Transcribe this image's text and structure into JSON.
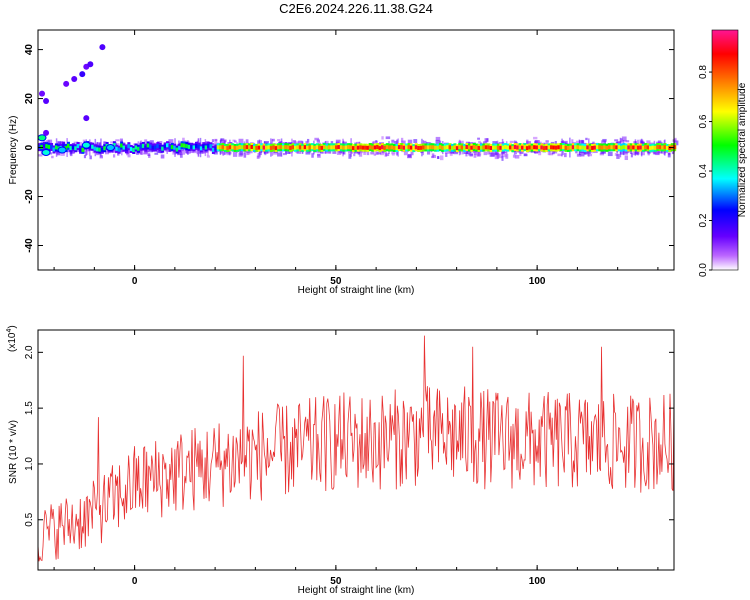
{
  "title": "C2E6.2024.226.11.38.G24",
  "chart_data": [
    {
      "type": "heatmap",
      "xlabel": "Height of straight line (km)",
      "ylabel": "Frequency (Hz)",
      "xlim": [
        -24,
        134
      ],
      "ylim": [
        -50,
        48
      ],
      "x_ticks": [
        "0",
        "50",
        "100"
      ],
      "y_ticks": [
        "40",
        "20",
        "0",
        "-20",
        "-40"
      ],
      "colorbar": {
        "label": "Normalized spectral amplitude",
        "range": [
          0,
          0.97
        ],
        "ticks": [
          "0.0",
          "0.2",
          "0.4",
          "0.6",
          "0.8"
        ],
        "colors": [
          "#ffffff",
          "#6600ff",
          "#0000ff",
          "#00ffff",
          "#00ff00",
          "#ffff00",
          "#ff8000",
          "#ff0000",
          "#ff1493"
        ]
      },
      "ridge": {
        "frequency_hz": 0,
        "x_range": [
          -24,
          134
        ],
        "core_high_amplitude_from_km": 20
      },
      "outlier_points": [
        {
          "x": -23,
          "y": 22
        },
        {
          "x": -22,
          "y": 19
        },
        {
          "x": -17,
          "y": 26
        },
        {
          "x": -15,
          "y": 28
        },
        {
          "x": -13,
          "y": 30
        },
        {
          "x": -12,
          "y": 33
        },
        {
          "x": -11,
          "y": 34
        },
        {
          "x": -8,
          "y": 41
        },
        {
          "x": -22,
          "y": 6
        },
        {
          "x": -12,
          "y": 12
        }
      ]
    },
    {
      "type": "line",
      "xlabel": "Height of straight line (km)",
      "ylabel": "SNR (10 * v/v)",
      "y_exponent": "(x10",
      "y_exponent_power": "4",
      "y_exponent_close": ")",
      "xlim": [
        -24,
        134
      ],
      "ylim": [
        0.05,
        2.2
      ],
      "y_unit_scale": 10000,
      "x_ticks": [
        "0",
        "50",
        "100"
      ],
      "y_ticks": [
        "2.0",
        "1.5",
        "1.0",
        "0.5"
      ],
      "color": "#e83030",
      "trend_points": [
        {
          "x": -24,
          "y": 0.35
        },
        {
          "x": -10,
          "y": 0.55
        },
        {
          "x": 0,
          "y": 0.82
        },
        {
          "x": 10,
          "y": 0.92
        },
        {
          "x": 20,
          "y": 1.0
        },
        {
          "x": 30,
          "y": 1.08
        },
        {
          "x": 40,
          "y": 1.13
        },
        {
          "x": 50,
          "y": 1.2
        },
        {
          "x": 60,
          "y": 1.2
        },
        {
          "x": 70,
          "y": 1.25
        },
        {
          "x": 80,
          "y": 1.25
        },
        {
          "x": 90,
          "y": 1.22
        },
        {
          "x": 100,
          "y": 1.2
        },
        {
          "x": 110,
          "y": 1.2
        },
        {
          "x": 120,
          "y": 1.18
        },
        {
          "x": 134,
          "y": 1.2
        }
      ],
      "peaks": [
        {
          "x": -9,
          "y": 1.42
        },
        {
          "x": 27,
          "y": 1.97
        },
        {
          "x": 72,
          "y": 2.15
        },
        {
          "x": 84,
          "y": 2.05
        },
        {
          "x": 116,
          "y": 2.05
        }
      ],
      "sample_spacing_km": 0.25,
      "amplitude_scale": 0.45
    }
  ]
}
